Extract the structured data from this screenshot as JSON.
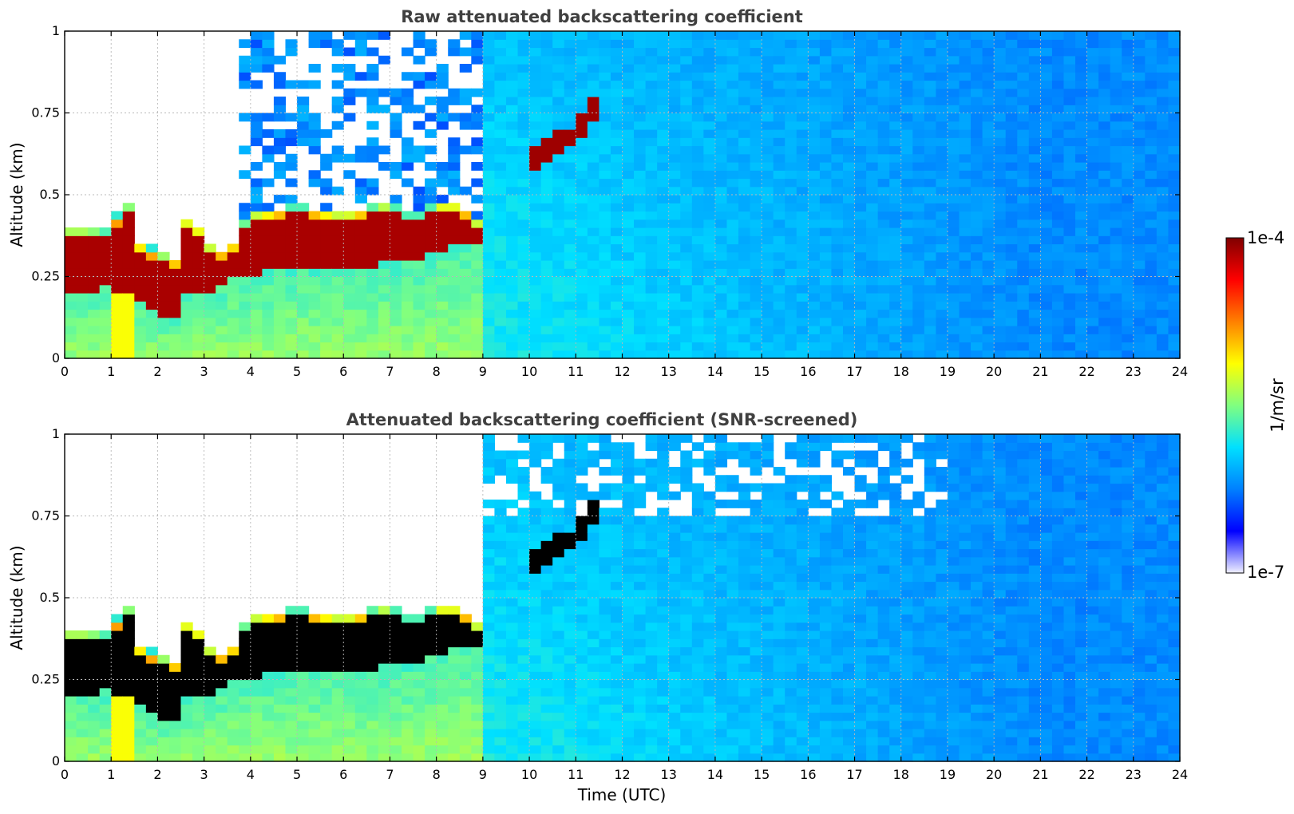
{
  "figure": {
    "colorbar": {
      "label": "1/m/sr",
      "max_label": "1e-4",
      "min_label": "1e-7",
      "range": [
        1e-07,
        0.0001
      ],
      "scale": "log",
      "colormap": "jet",
      "stops": [
        "#f0f0ff",
        "#0000ff",
        "#0080ff",
        "#00e0ff",
        "#80ff80",
        "#ffff00",
        "#ff8000",
        "#ff0000",
        "#800000"
      ]
    },
    "xlabel": "Time (UTC)"
  },
  "chart_data": [
    {
      "type": "heatmap",
      "title": "Raw attenuated backscattering coefficient",
      "xlabel": "",
      "ylabel": "Altitude (km)",
      "xlim": [
        0,
        24
      ],
      "ylim": [
        0,
        1
      ],
      "x_ticks": [
        "0",
        "1",
        "2",
        "3",
        "4",
        "5",
        "6",
        "7",
        "8",
        "9",
        "10",
        "11",
        "12",
        "13",
        "14",
        "15",
        "16",
        "17",
        "18",
        "19",
        "20",
        "21",
        "22",
        "23",
        "24"
      ],
      "y_ticks": [
        {
          "value": 0,
          "label": "0"
        },
        {
          "value": 0.25,
          "label": "0.25"
        },
        {
          "value": 0.5,
          "label": "0.5"
        },
        {
          "value": 0.75,
          "label": "0.75"
        },
        {
          "value": 1,
          "label": "1"
        }
      ],
      "grid": true,
      "layer_top_km": {
        "time_utc": [
          0,
          0.5,
          1,
          1.3,
          1.6,
          2,
          2.4,
          2.7,
          3,
          3.5,
          4,
          5,
          6,
          7,
          7.5,
          8,
          8.5,
          9
        ],
        "altitude_km": [
          0.37,
          0.37,
          0.36,
          0.48,
          0.33,
          0.3,
          0.28,
          0.44,
          0.33,
          0.3,
          0.42,
          0.44,
          0.42,
          0.45,
          0.4,
          0.45,
          0.45,
          0.38
        ]
      },
      "layer_base_km": {
        "time_utc": [
          0,
          0.5,
          1,
          1.5,
          2,
          2.4,
          2.7,
          3,
          3.5,
          4,
          5,
          6,
          7,
          7.5,
          8.5
        ],
        "altitude_km": [
          0.2,
          0.21,
          0.22,
          0.18,
          0.14,
          0.12,
          0.22,
          0.2,
          0.23,
          0.26,
          0.27,
          0.28,
          0.29,
          0.3,
          0.36
        ]
      },
      "elevated_layer": {
        "time_utc": [
          10,
          10.5,
          11,
          11.5
        ],
        "altitude_km": [
          0.6,
          0.65,
          0.68,
          0.78
        ]
      },
      "background_signal": "raw"
    },
    {
      "type": "heatmap",
      "title": "Attenuated backscattering coefficient (SNR-screened)",
      "xlabel": "Time (UTC)",
      "ylabel": "Altitude (km)",
      "xlim": [
        0,
        24
      ],
      "ylim": [
        0,
        1
      ],
      "x_ticks": [
        "0",
        "1",
        "2",
        "3",
        "4",
        "5",
        "6",
        "7",
        "8",
        "9",
        "10",
        "11",
        "12",
        "13",
        "14",
        "15",
        "16",
        "17",
        "18",
        "19",
        "20",
        "21",
        "22",
        "23",
        "24"
      ],
      "y_ticks": [
        {
          "value": 0,
          "label": "0"
        },
        {
          "value": 0.25,
          "label": "0.25"
        },
        {
          "value": 0.5,
          "label": "0.5"
        },
        {
          "value": 0.75,
          "label": "0.75"
        },
        {
          "value": 1,
          "label": "1"
        }
      ],
      "grid": true,
      "layer_top_km": {
        "time_utc": [
          0,
          0.5,
          1,
          1.3,
          1.6,
          2,
          2.4,
          2.7,
          3,
          3.5,
          4,
          5,
          6,
          7,
          7.5,
          8,
          8.5,
          9
        ],
        "altitude_km": [
          0.37,
          0.37,
          0.36,
          0.48,
          0.33,
          0.3,
          0.28,
          0.44,
          0.33,
          0.3,
          0.42,
          0.44,
          0.42,
          0.45,
          0.4,
          0.45,
          0.45,
          0.38
        ]
      },
      "layer_base_km": {
        "time_utc": [
          0,
          0.5,
          1,
          1.5,
          2,
          2.4,
          2.7,
          3,
          3.5,
          4,
          5,
          6,
          7,
          7.5,
          8.5
        ],
        "altitude_km": [
          0.2,
          0.21,
          0.22,
          0.18,
          0.14,
          0.12,
          0.22,
          0.2,
          0.23,
          0.26,
          0.27,
          0.28,
          0.29,
          0.3,
          0.36
        ]
      },
      "elevated_layer": {
        "time_utc": [
          10,
          10.5,
          11,
          11.5
        ],
        "altitude_km": [
          0.6,
          0.65,
          0.68,
          0.78
        ]
      },
      "background_signal": "screened"
    }
  ]
}
